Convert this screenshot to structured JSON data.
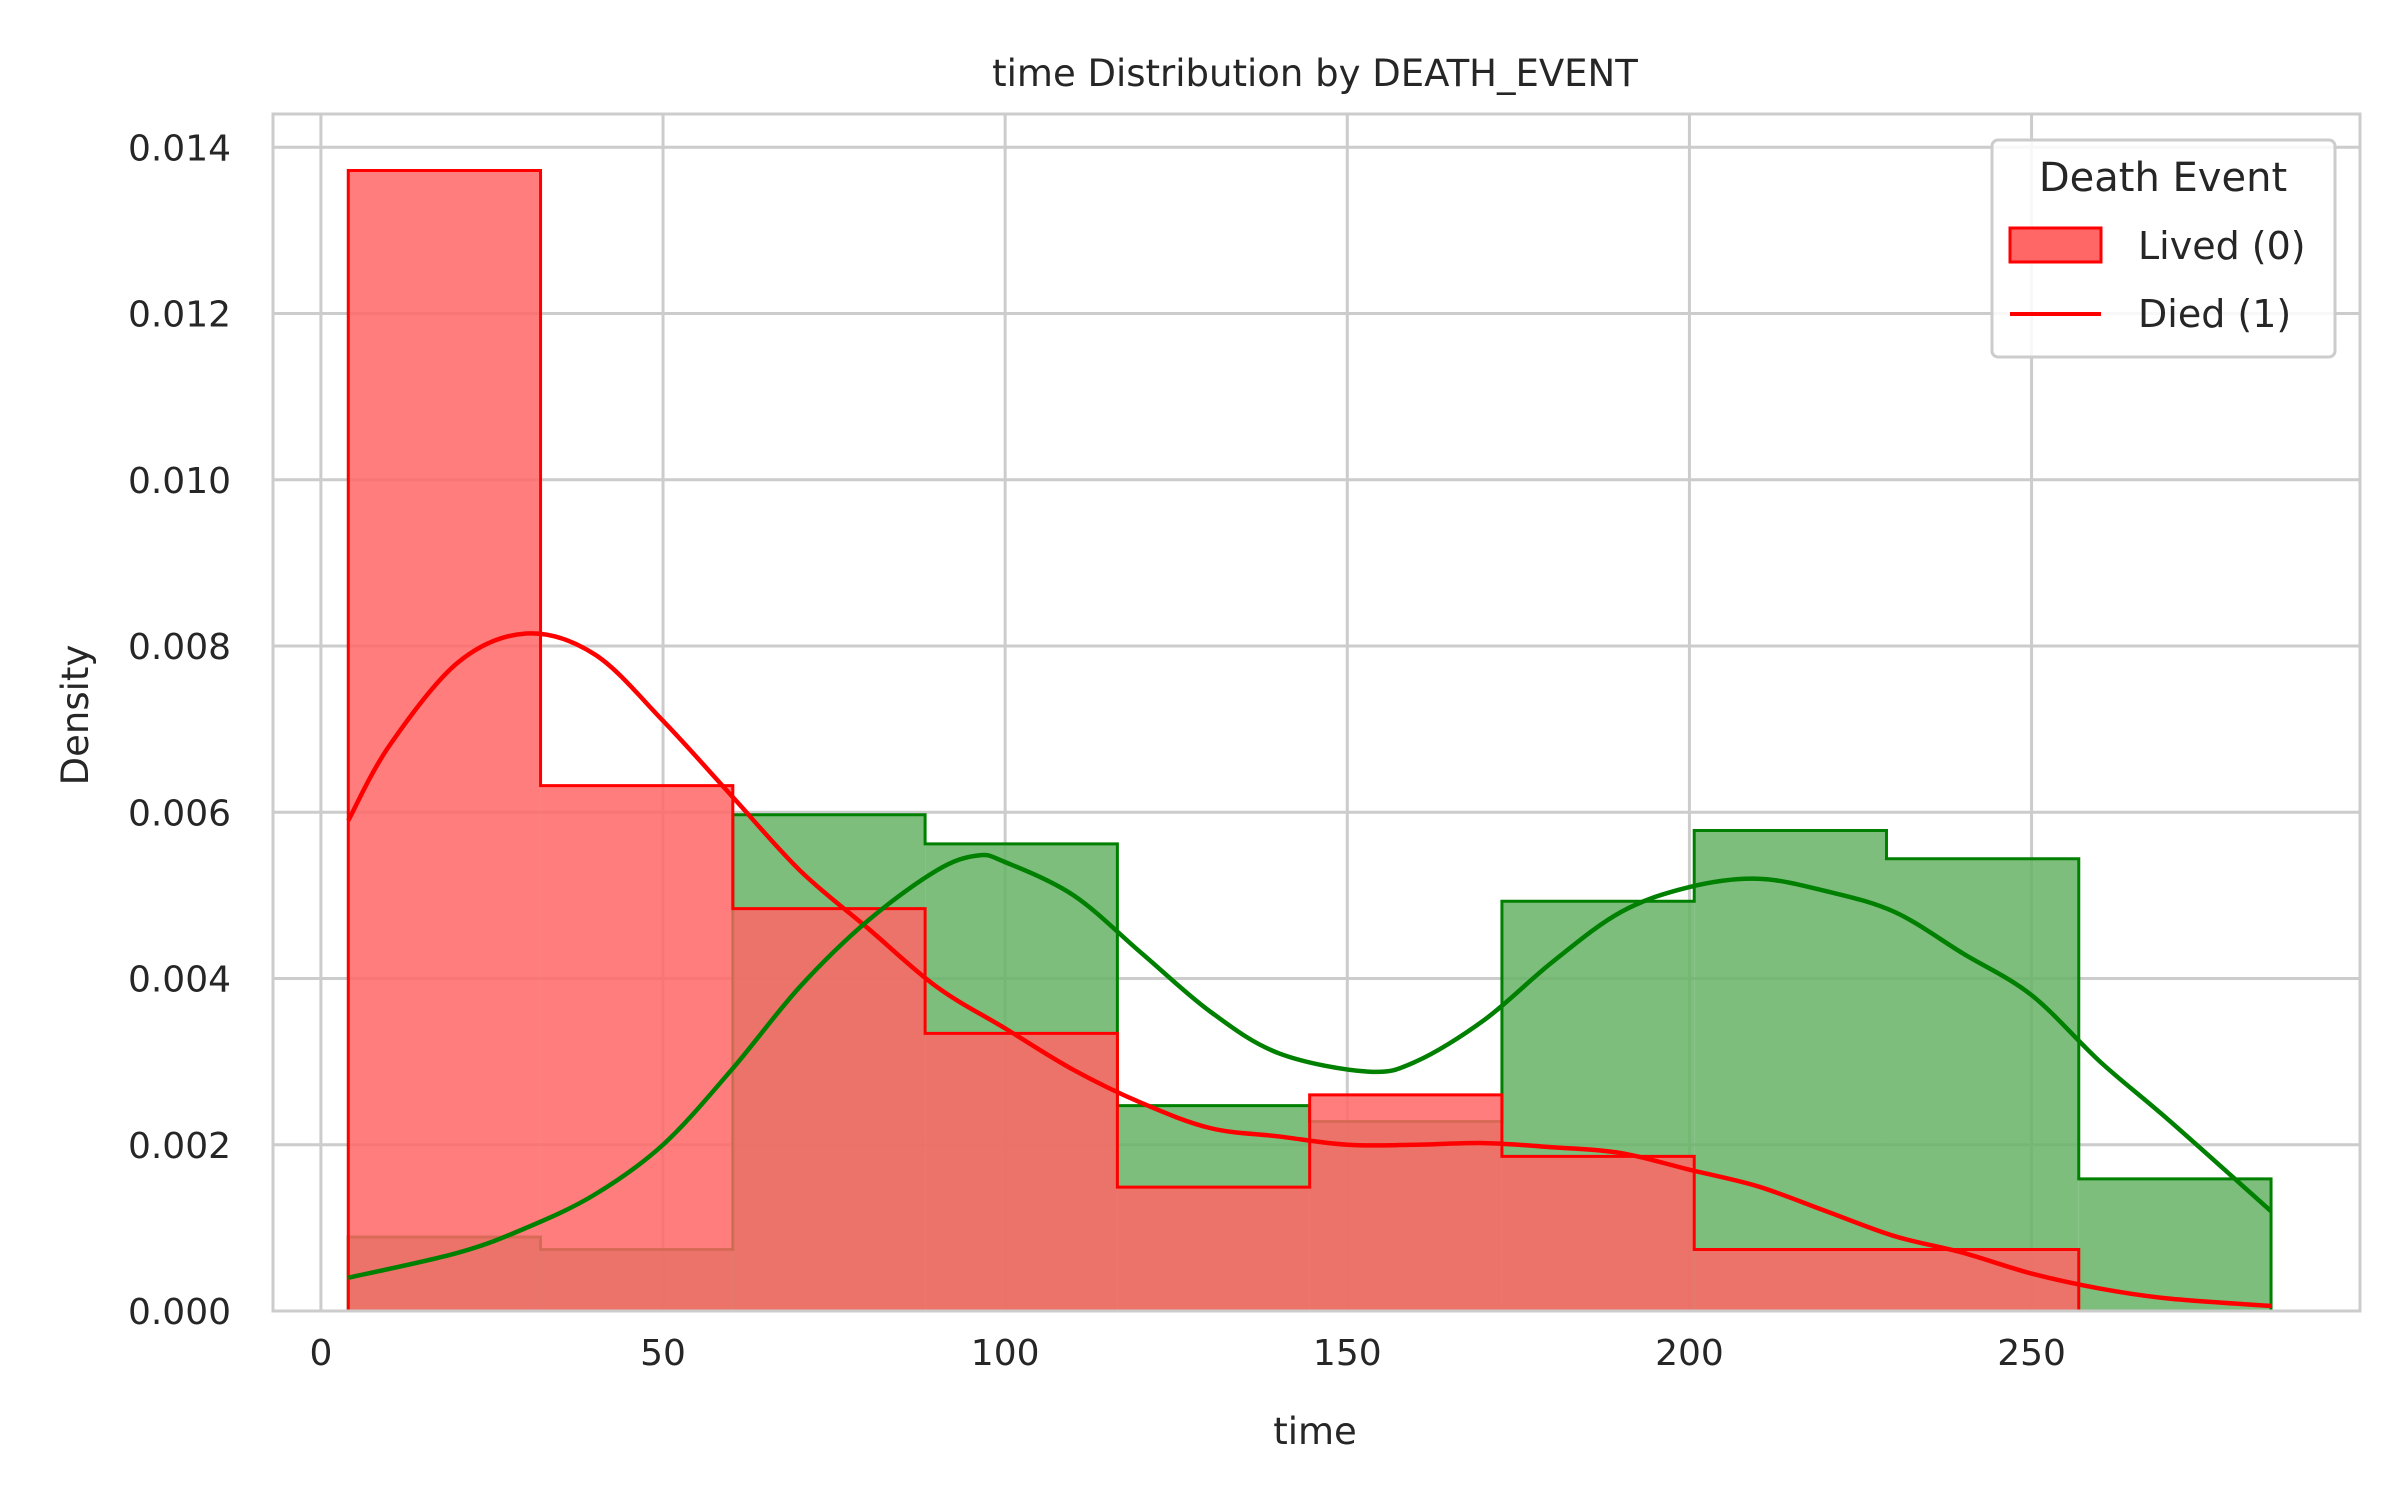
{
  "chart_data": {
    "type": "histogram",
    "title": "time Distribution by DEATH_EVENT",
    "xlabel": "time",
    "ylabel": "Density",
    "xlim": [
      -7,
      298
    ],
    "ylim": [
      0,
      0.0144
    ],
    "xticks": [
      0,
      50,
      100,
      150,
      200,
      250
    ],
    "xtick_labels": [
      "0",
      "50",
      "100",
      "150",
      "200",
      "250"
    ],
    "yticks": [
      0,
      0.002,
      0.004,
      0.006,
      0.008,
      0.01,
      0.012,
      0.014
    ],
    "ytick_labels": [
      "0.000",
      "0.002",
      "0.004",
      "0.006",
      "0.008",
      "0.010",
      "0.012",
      "0.014"
    ],
    "grid": true,
    "legend": {
      "title": "Death Event",
      "placement": "top-right",
      "entries": [
        "Lived (0)",
        "Died (1)"
      ]
    },
    "bin_edges": [
      4,
      32.1,
      60.2,
      88.3,
      116.4,
      144.5,
      172.6,
      200.7,
      228.8,
      256.9,
      285
    ],
    "series": [
      {
        "group": "red",
        "color": "#ff0000",
        "fill": "#ff6666",
        "density": [
          0.01372,
          0.00632,
          0.00484,
          0.00334,
          0.00149,
          0.0026,
          0.00186,
          0.00074,
          0.00074,
          0
        ],
        "kde_x": [
          4,
          10,
          20,
          30,
          40,
          50,
          60,
          70,
          80,
          90,
          100,
          110,
          120,
          130,
          140,
          150,
          160,
          170,
          180,
          190,
          200,
          210,
          220,
          230,
          240,
          250,
          260,
          270,
          285
        ],
        "kde_y": [
          0.0059,
          0.0068,
          0.0078,
          0.00815,
          0.0079,
          0.0071,
          0.0062,
          0.0053,
          0.0046,
          0.0039,
          0.0034,
          0.0029,
          0.0025,
          0.0022,
          0.0021,
          0.002,
          0.002,
          0.00202,
          0.00197,
          0.0019,
          0.0017,
          0.0015,
          0.0012,
          0.0009,
          0.0007,
          0.00045,
          0.00027,
          0.00015,
          6e-05
        ]
      },
      {
        "group": "green",
        "color": "#008000",
        "fill": "#66b366",
        "density": [
          0.00089,
          0.00074,
          0.00597,
          0.00562,
          0.00247,
          0.00228,
          0.00493,
          0.00578,
          0.00544,
          0.00159
        ],
        "kde_x": [
          4,
          20,
          30,
          40,
          50,
          60,
          70,
          80,
          90,
          96,
          100,
          110,
          120,
          130,
          140,
          153,
          160,
          170,
          180,
          190,
          200,
          210,
          220,
          230,
          240,
          250,
          260,
          270,
          285
        ],
        "kde_y": [
          0.0004,
          0.0007,
          0.001,
          0.0014,
          0.002,
          0.0029,
          0.0039,
          0.0047,
          0.0053,
          0.00548,
          0.0054,
          0.005,
          0.0043,
          0.0036,
          0.0031,
          0.00288,
          0.003,
          0.0035,
          0.0042,
          0.0048,
          0.0051,
          0.0052,
          0.00505,
          0.0048,
          0.0043,
          0.0038,
          0.003,
          0.0023,
          0.0012
        ]
      }
    ]
  }
}
